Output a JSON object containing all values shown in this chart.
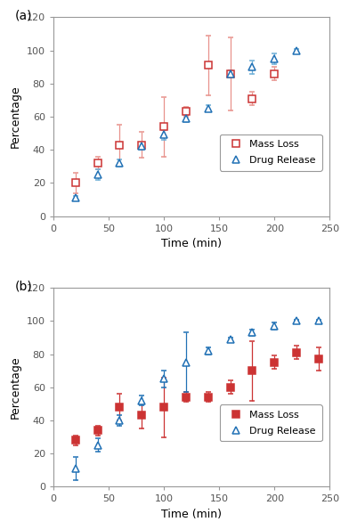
{
  "panel_a": {
    "mass_loss_x": [
      20,
      40,
      60,
      80,
      100,
      120,
      140,
      160,
      180,
      200
    ],
    "mass_loss_y": [
      20,
      32,
      43,
      43,
      54,
      63,
      91,
      86,
      71,
      86
    ],
    "mass_loss_yerr": [
      6,
      4,
      12,
      8,
      18,
      3,
      18,
      22,
      4,
      4
    ],
    "drug_release_x": [
      20,
      40,
      60,
      80,
      100,
      120,
      140,
      160,
      180,
      200,
      220
    ],
    "drug_release_y": [
      11,
      25,
      32,
      42,
      49,
      59,
      65,
      86,
      90,
      95,
      100
    ],
    "drug_release_yerr": [
      1,
      3,
      2,
      2,
      3,
      2,
      2,
      2,
      4,
      3,
      1
    ]
  },
  "panel_b": {
    "mass_loss_x": [
      20,
      40,
      60,
      80,
      100,
      120,
      140,
      160,
      180,
      200,
      220,
      240
    ],
    "mass_loss_y": [
      28,
      34,
      48,
      43,
      48,
      54,
      54,
      60,
      70,
      75,
      81,
      77
    ],
    "mass_loss_yerr": [
      3,
      3,
      8,
      8,
      18,
      3,
      3,
      4,
      18,
      4,
      4,
      7
    ],
    "drug_release_x": [
      20,
      40,
      60,
      80,
      100,
      120,
      140,
      160,
      180,
      200,
      220,
      240
    ],
    "drug_release_y": [
      11,
      25,
      40,
      52,
      65,
      75,
      82,
      89,
      93,
      97,
      100,
      100
    ],
    "drug_release_yerr": [
      7,
      4,
      3,
      3,
      5,
      18,
      2,
      1,
      2,
      2,
      1,
      1
    ]
  },
  "mass_loss_color_a": "#e8928c",
  "mass_loss_edge_a": "#cc3333",
  "drug_release_color_a": "#6baed6",
  "drug_release_edge_a": "#2171b5",
  "mass_loss_color_b": "#cc3333",
  "mass_loss_edge_b": "#cc3333",
  "drug_release_color_b": "#2171b5",
  "drug_release_edge_b": "#2171b5",
  "xlabel": "Time (min)",
  "ylabel": "Percentage",
  "xlim": [
    0,
    250
  ],
  "ylim": [
    0,
    120
  ],
  "xticks": [
    0,
    50,
    100,
    150,
    200,
    250
  ],
  "yticks": [
    0,
    20,
    40,
    60,
    80,
    100,
    120
  ],
  "spine_color": "#999999",
  "tick_color": "#555555",
  "label_fontsize": 9,
  "tick_fontsize": 8,
  "panel_label_fontsize": 10,
  "legend_fontsize": 8
}
